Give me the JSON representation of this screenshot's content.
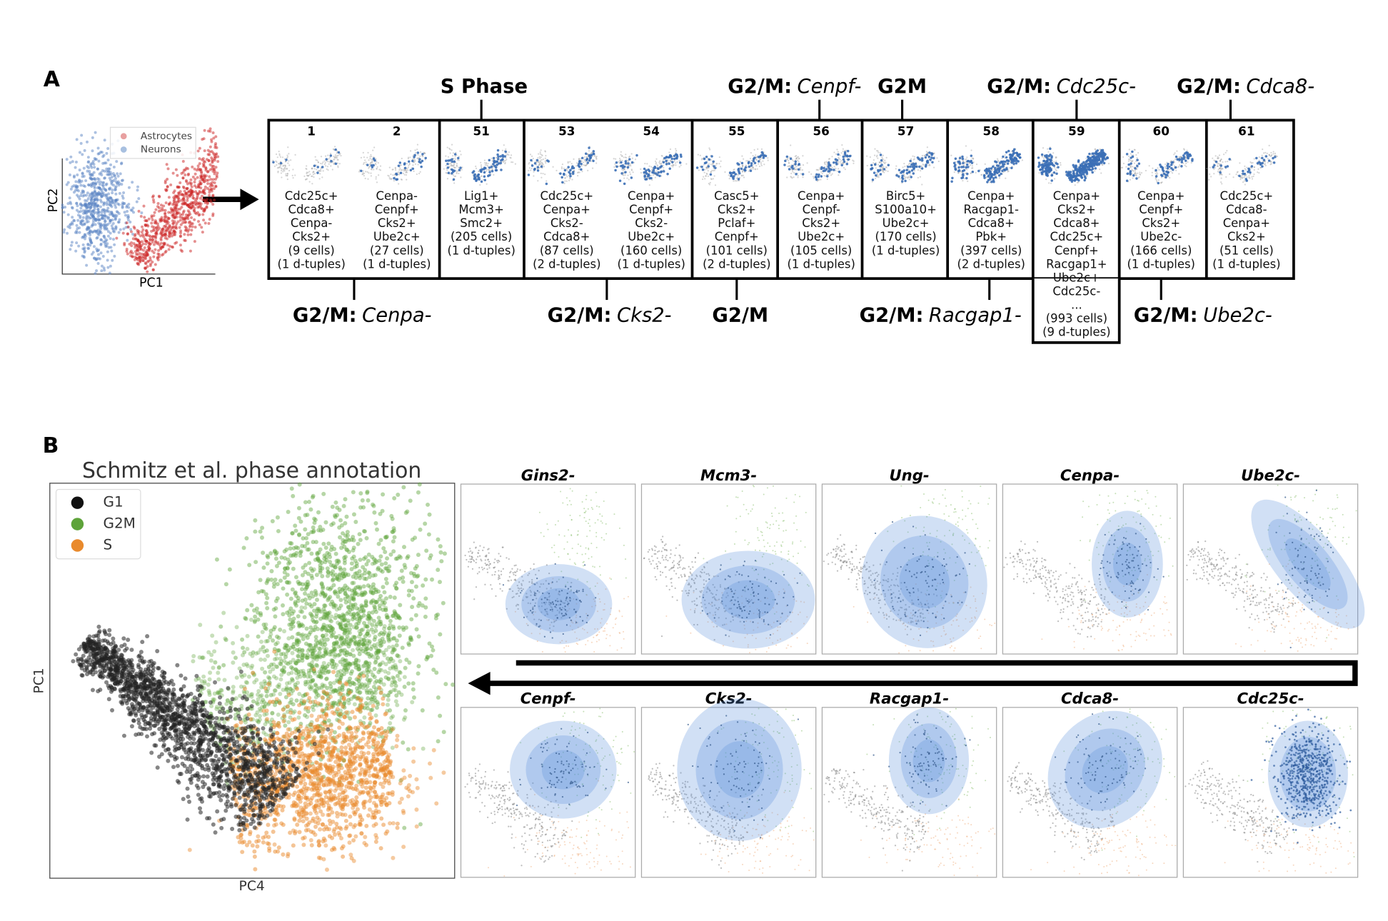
{
  "panel_a": {
    "label": "A",
    "inset": {
      "x_label": "PC1",
      "y_label": "PC2",
      "legend": [
        "Astrocytes",
        "Neurons"
      ]
    },
    "cells": [
      {
        "id": "1",
        "lines": [
          "Cdc25c+",
          "Cdca8+",
          "Cenpa-",
          "Cks2+",
          "(9 cells)",
          "(1 d-tuples)"
        ]
      },
      {
        "id": "2",
        "lines": [
          "Cenpa-",
          "Cenpf+",
          "Cks2+",
          "Ube2c+",
          "(27 cells)",
          "(1 d-tuples)"
        ]
      },
      {
        "id": "51",
        "lines": [
          "Lig1+",
          "Mcm3+",
          "Smc2+",
          "(205 cells)",
          "(1 d-tuples)"
        ]
      },
      {
        "id": "53",
        "lines": [
          "Cdc25c+",
          "Cenpa+",
          "Cks2-",
          "Cdca8+",
          "(87 cells)",
          "(2 d-tuples)"
        ]
      },
      {
        "id": "54",
        "lines": [
          "Cenpa+",
          "Cenpf+",
          "Cks2-",
          "Ube2c+",
          "(160 cells)",
          "(1 d-tuples)"
        ]
      },
      {
        "id": "55",
        "lines": [
          "Casc5+",
          "Cks2+",
          "Pclaf+",
          "Cenpf+",
          "(101 cells)",
          "(2 d-tuples)"
        ]
      },
      {
        "id": "56",
        "lines": [
          "Cenpa+",
          "Cenpf-",
          "Cks2+",
          "Ube2c+",
          "(105 cells)",
          "(1 d-tuples)"
        ]
      },
      {
        "id": "57",
        "lines": [
          "Birc5+",
          "S100a10+",
          "Ube2c+",
          "(170 cells)",
          "(1 d-tuples)"
        ]
      },
      {
        "id": "58",
        "lines": [
          "Cenpa+",
          "Racgap1-",
          "Cdca8+",
          "Pbk+",
          "(397 cells)",
          "(2 d-tuples)"
        ]
      },
      {
        "id": "59",
        "lines": [
          "Cenpa+",
          "Cks2+",
          "Cdca8+",
          "Cdc25c+",
          "Cenpf+",
          "Racgap1+",
          "Ube2c+",
          "Cdc25c-",
          "...",
          "(993 cells)",
          "(9 d-tuples)"
        ]
      },
      {
        "id": "60",
        "lines": [
          "Cenpa+",
          "Cenpf+",
          "Cks2+",
          "Ube2c-",
          "(166 cells)",
          "(1 d-tuples)"
        ]
      },
      {
        "id": "61",
        "lines": [
          "Cdc25c+",
          "Cdca8-",
          "Cenpa+",
          "Cks2+",
          "(51 cells)",
          "(1 d-tuples)"
        ]
      }
    ],
    "top_labels": [
      {
        "bold": "S Phase"
      },
      {
        "bold": "G2/M:",
        "italic": "Cenpf-"
      },
      {
        "bold": "G2M"
      },
      {
        "bold": "G2/M:",
        "italic": "Cdc25c-"
      },
      {
        "bold": "G2/M:",
        "italic": "Cdca8-"
      }
    ],
    "bottom_labels": [
      {
        "bold": "G2/M:",
        "italic": "Cenpa-"
      },
      {
        "bold": "G2/M:",
        "italic": "Cks2-"
      },
      {
        "bold": "G2/M"
      },
      {
        "bold": "G2/M:",
        "italic": "Racgap1-"
      },
      {
        "bold": "G2/M:",
        "italic": "Ube2c-"
      }
    ]
  },
  "panel_b": {
    "label": "B",
    "title": "Schmitz et al. phase annotation",
    "x_label": "PC4",
    "y_label": "PC1",
    "legend": [
      "G1",
      "G2M",
      "S"
    ],
    "panels": [
      "Gins2-",
      "Mcm3-",
      "Ung-",
      "Cenpa-",
      "Ube2c-",
      "Cenpf-",
      "Cks2-",
      "Racgap1-",
      "Cdca8-",
      "Cdc25c-"
    ]
  }
}
